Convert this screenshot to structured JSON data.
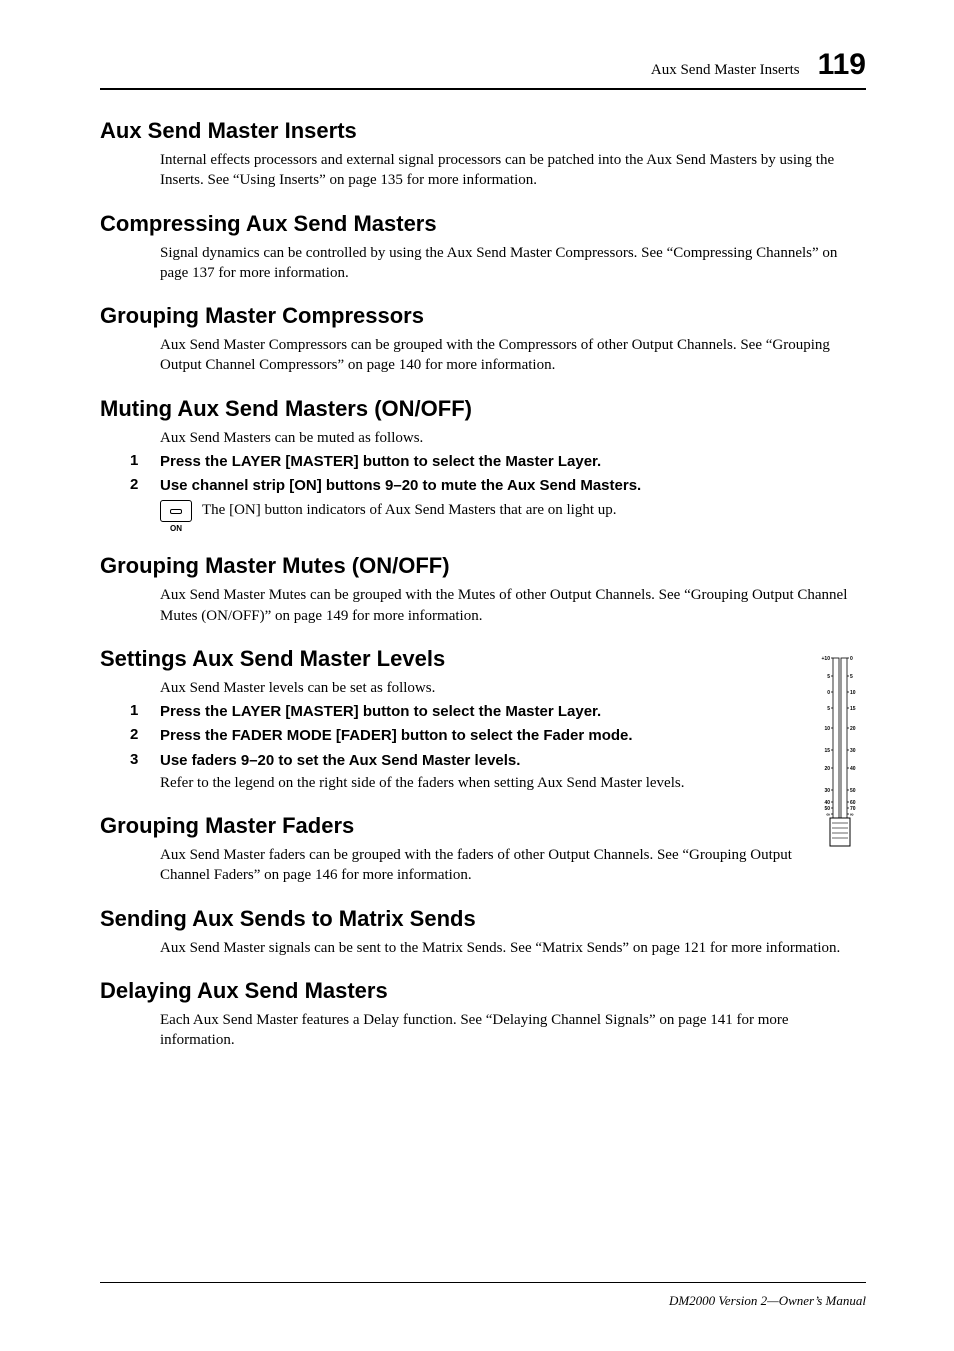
{
  "running_header": {
    "title": "Aux Send Master Inserts",
    "page_number": "119"
  },
  "sections": {
    "inserts": {
      "heading": "Aux Send Master Inserts",
      "body": "Internal effects processors and external signal processors can be patched into the Aux Send Masters by using the Inserts. See “Using Inserts” on page 135 for more information."
    },
    "compressing": {
      "heading": "Compressing Aux Send Masters",
      "body": "Signal dynamics can be controlled by using the Aux Send Master Compressors. See “Compressing Channels” on page 137 for more information."
    },
    "group_comp": {
      "heading": "Grouping Master Compressors",
      "body": "Aux Send Master Compressors can be grouped with the Compressors of other Output Channels. See “Grouping Output Channel Compressors” on page 140 for more information."
    },
    "muting": {
      "heading": "Muting Aux Send Masters (ON/OFF)",
      "intro": "Aux Send Masters can be muted as follows.",
      "step1_num": "1",
      "step1": "Press the LAYER [MASTER] button to select the Master Layer.",
      "step2_num": "2",
      "step2": "Use channel strip [ON] buttons 9–20 to mute the Aux Send Masters.",
      "icon_label": "ON",
      "icon_text": "The [ON] button indicators of Aux Send Masters that are on light up."
    },
    "group_mutes": {
      "heading": "Grouping Master Mutes (ON/OFF)",
      "body": "Aux Send Master Mutes can be grouped with the Mutes of other Output Channels. See “Grouping Output Channel Mutes (ON/OFF)” on page 149 for more information."
    },
    "levels": {
      "heading": "Settings Aux Send Master Levels",
      "intro": "Aux Send Master levels can be set as follows.",
      "step1_num": "1",
      "step1": "Press the LAYER [MASTER] button to select the Master Layer.",
      "step2_num": "2",
      "step2": "Press the FADER MODE [FADER] button to select the Fader mode.",
      "step3_num": "3",
      "step3": "Use faders 9–20 to set the Aux Send Master levels.",
      "step3_body": "Refer to the legend on the right side of the faders when setting Aux Send Master levels."
    },
    "group_faders": {
      "heading": "Grouping Master Faders",
      "body": "Aux Send Master faders can be grouped with the faders of other Output Channels. See “Grouping Output Channel Faders” on page 146 for more information."
    },
    "matrix": {
      "heading": "Sending Aux Sends to Matrix Sends",
      "body": "Aux Send Master signals can be sent to the Matrix Sends. See “Matrix Sends” on page 121 for more information."
    },
    "delaying": {
      "heading": "Delaying Aux Send Masters",
      "body": "Each Aux Send Master features a Delay function. See “Delaying Channel Signals” on page 141 for more information."
    }
  },
  "fader_scale": {
    "left_labels": [
      "+10",
      "5",
      "0",
      "5",
      "10",
      "15",
      "20",
      "30",
      "40",
      "50",
      "∞"
    ],
    "right_labels": [
      "0",
      "5",
      "10",
      "15",
      "20",
      "30",
      "40",
      "50",
      "60",
      "70",
      "∞"
    ],
    "left_y": [
      0,
      18,
      34,
      50,
      70,
      92,
      110,
      132,
      144,
      150,
      156
    ],
    "right_y": [
      0,
      18,
      34,
      50,
      70,
      92,
      110,
      132,
      144,
      150,
      156
    ],
    "track_height": 196,
    "tick_color": "#000000",
    "label_fontsize": 5,
    "label_color": "#000000",
    "track_color": "#000000"
  },
  "footer": {
    "text": "DM2000 Version 2—Owner’s Manual"
  }
}
